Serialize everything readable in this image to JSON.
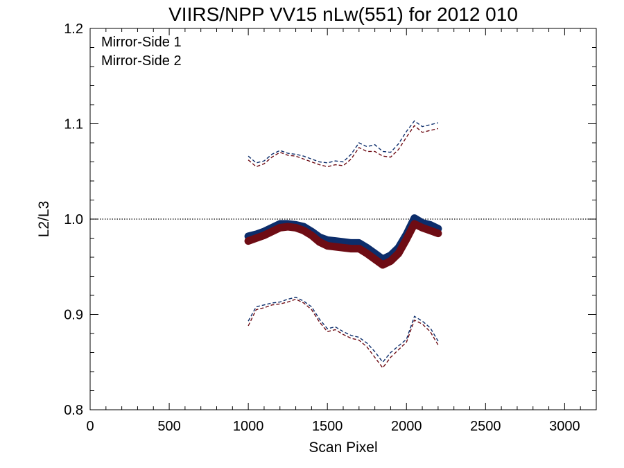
{
  "chart_data": {
    "type": "line",
    "title": "VIIRS/NPP VV15 nLw(551) for 2012 010",
    "xlabel": "Scan Pixel",
    "ylabel": "L2/L3",
    "xlim": [
      0,
      3200
    ],
    "ylim": [
      0.8,
      1.2
    ],
    "xticks": [
      0,
      500,
      1000,
      1500,
      2000,
      2500,
      3000
    ],
    "xtick_labels": [
      "0",
      "500",
      "1000",
      "1500",
      "2000",
      "2500",
      "3000"
    ],
    "yticks": [
      0.8,
      0.9,
      1.0,
      1.1,
      1.2
    ],
    "ytick_labels": [
      "0.8",
      "0.9",
      "1.0",
      "1.1",
      "1.2"
    ],
    "legend_position": "top-left",
    "grid": false,
    "reference_line": {
      "y": 1.0,
      "style": "dotted"
    },
    "colors": {
      "mirror_side_1": "#0c2d6b",
      "mirror_side_2": "#6e0c14"
    },
    "series": [
      {
        "name": "Mirror-Side 1",
        "mean_x": [
          1000,
          1050,
          1100,
          1150,
          1200,
          1250,
          1300,
          1350,
          1400,
          1450,
          1500,
          1550,
          1600,
          1650,
          1700,
          1750,
          1800,
          1850,
          1900,
          1950,
          2000,
          2050,
          2100,
          2150,
          2200
        ],
        "mean": [
          0.982,
          0.984,
          0.987,
          0.991,
          0.995,
          0.995,
          0.994,
          0.992,
          0.987,
          0.981,
          0.978,
          0.977,
          0.976,
          0.975,
          0.975,
          0.97,
          0.964,
          0.958,
          0.962,
          0.97,
          0.984,
          1.001,
          0.996,
          0.994,
          0.99
        ],
        "upper_x": [
          1000,
          1050,
          1100,
          1150,
          1200,
          1250,
          1300,
          1350,
          1400,
          1450,
          1500,
          1550,
          1600,
          1650,
          1700,
          1750,
          1800,
          1850,
          1900,
          1950,
          2000,
          2050,
          2100,
          2150,
          2200
        ],
        "upper": [
          1.066,
          1.059,
          1.061,
          1.068,
          1.072,
          1.069,
          1.068,
          1.066,
          1.063,
          1.06,
          1.059,
          1.061,
          1.06,
          1.068,
          1.08,
          1.076,
          1.078,
          1.071,
          1.07,
          1.079,
          1.092,
          1.103,
          1.097,
          1.099,
          1.101
        ],
        "lower_x": [
          1000,
          1050,
          1100,
          1150,
          1200,
          1250,
          1300,
          1350,
          1400,
          1450,
          1500,
          1550,
          1600,
          1650,
          1700,
          1750,
          1800,
          1850,
          1900,
          1950,
          2000,
          2050,
          2100,
          2150,
          2200
        ],
        "lower": [
          0.893,
          0.908,
          0.91,
          0.912,
          0.913,
          0.916,
          0.918,
          0.914,
          0.908,
          0.895,
          0.885,
          0.887,
          0.882,
          0.878,
          0.876,
          0.87,
          0.861,
          0.85,
          0.86,
          0.867,
          0.874,
          0.898,
          0.893,
          0.886,
          0.872
        ]
      },
      {
        "name": "Mirror-Side 2",
        "mean_x": [
          1000,
          1050,
          1100,
          1150,
          1200,
          1250,
          1300,
          1350,
          1400,
          1450,
          1500,
          1550,
          1600,
          1650,
          1700,
          1750,
          1800,
          1850,
          1900,
          1950,
          2000,
          2050,
          2100,
          2150,
          2200
        ],
        "mean": [
          0.977,
          0.98,
          0.983,
          0.987,
          0.991,
          0.992,
          0.991,
          0.988,
          0.983,
          0.976,
          0.972,
          0.971,
          0.97,
          0.969,
          0.969,
          0.964,
          0.958,
          0.952,
          0.956,
          0.964,
          0.979,
          0.995,
          0.991,
          0.988,
          0.985
        ],
        "upper_x": [
          1000,
          1050,
          1100,
          1150,
          1200,
          1250,
          1300,
          1350,
          1400,
          1450,
          1500,
          1550,
          1600,
          1650,
          1700,
          1750,
          1800,
          1850,
          1900,
          1950,
          2000,
          2050,
          2100,
          2150,
          2200
        ],
        "upper": [
          1.062,
          1.055,
          1.058,
          1.065,
          1.07,
          1.067,
          1.066,
          1.063,
          1.06,
          1.057,
          1.055,
          1.057,
          1.056,
          1.063,
          1.075,
          1.071,
          1.071,
          1.066,
          1.065,
          1.073,
          1.086,
          1.098,
          1.091,
          1.093,
          1.095
        ],
        "lower_x": [
          1000,
          1050,
          1100,
          1150,
          1200,
          1250,
          1300,
          1350,
          1400,
          1450,
          1500,
          1550,
          1600,
          1650,
          1700,
          1750,
          1800,
          1850,
          1900,
          1950,
          2000,
          2050,
          2100,
          2150,
          2200
        ],
        "lower": [
          0.888,
          0.905,
          0.907,
          0.91,
          0.911,
          0.913,
          0.916,
          0.912,
          0.905,
          0.892,
          0.882,
          0.884,
          0.879,
          0.875,
          0.873,
          0.866,
          0.855,
          0.844,
          0.855,
          0.863,
          0.871,
          0.894,
          0.89,
          0.882,
          0.868
        ]
      }
    ]
  }
}
